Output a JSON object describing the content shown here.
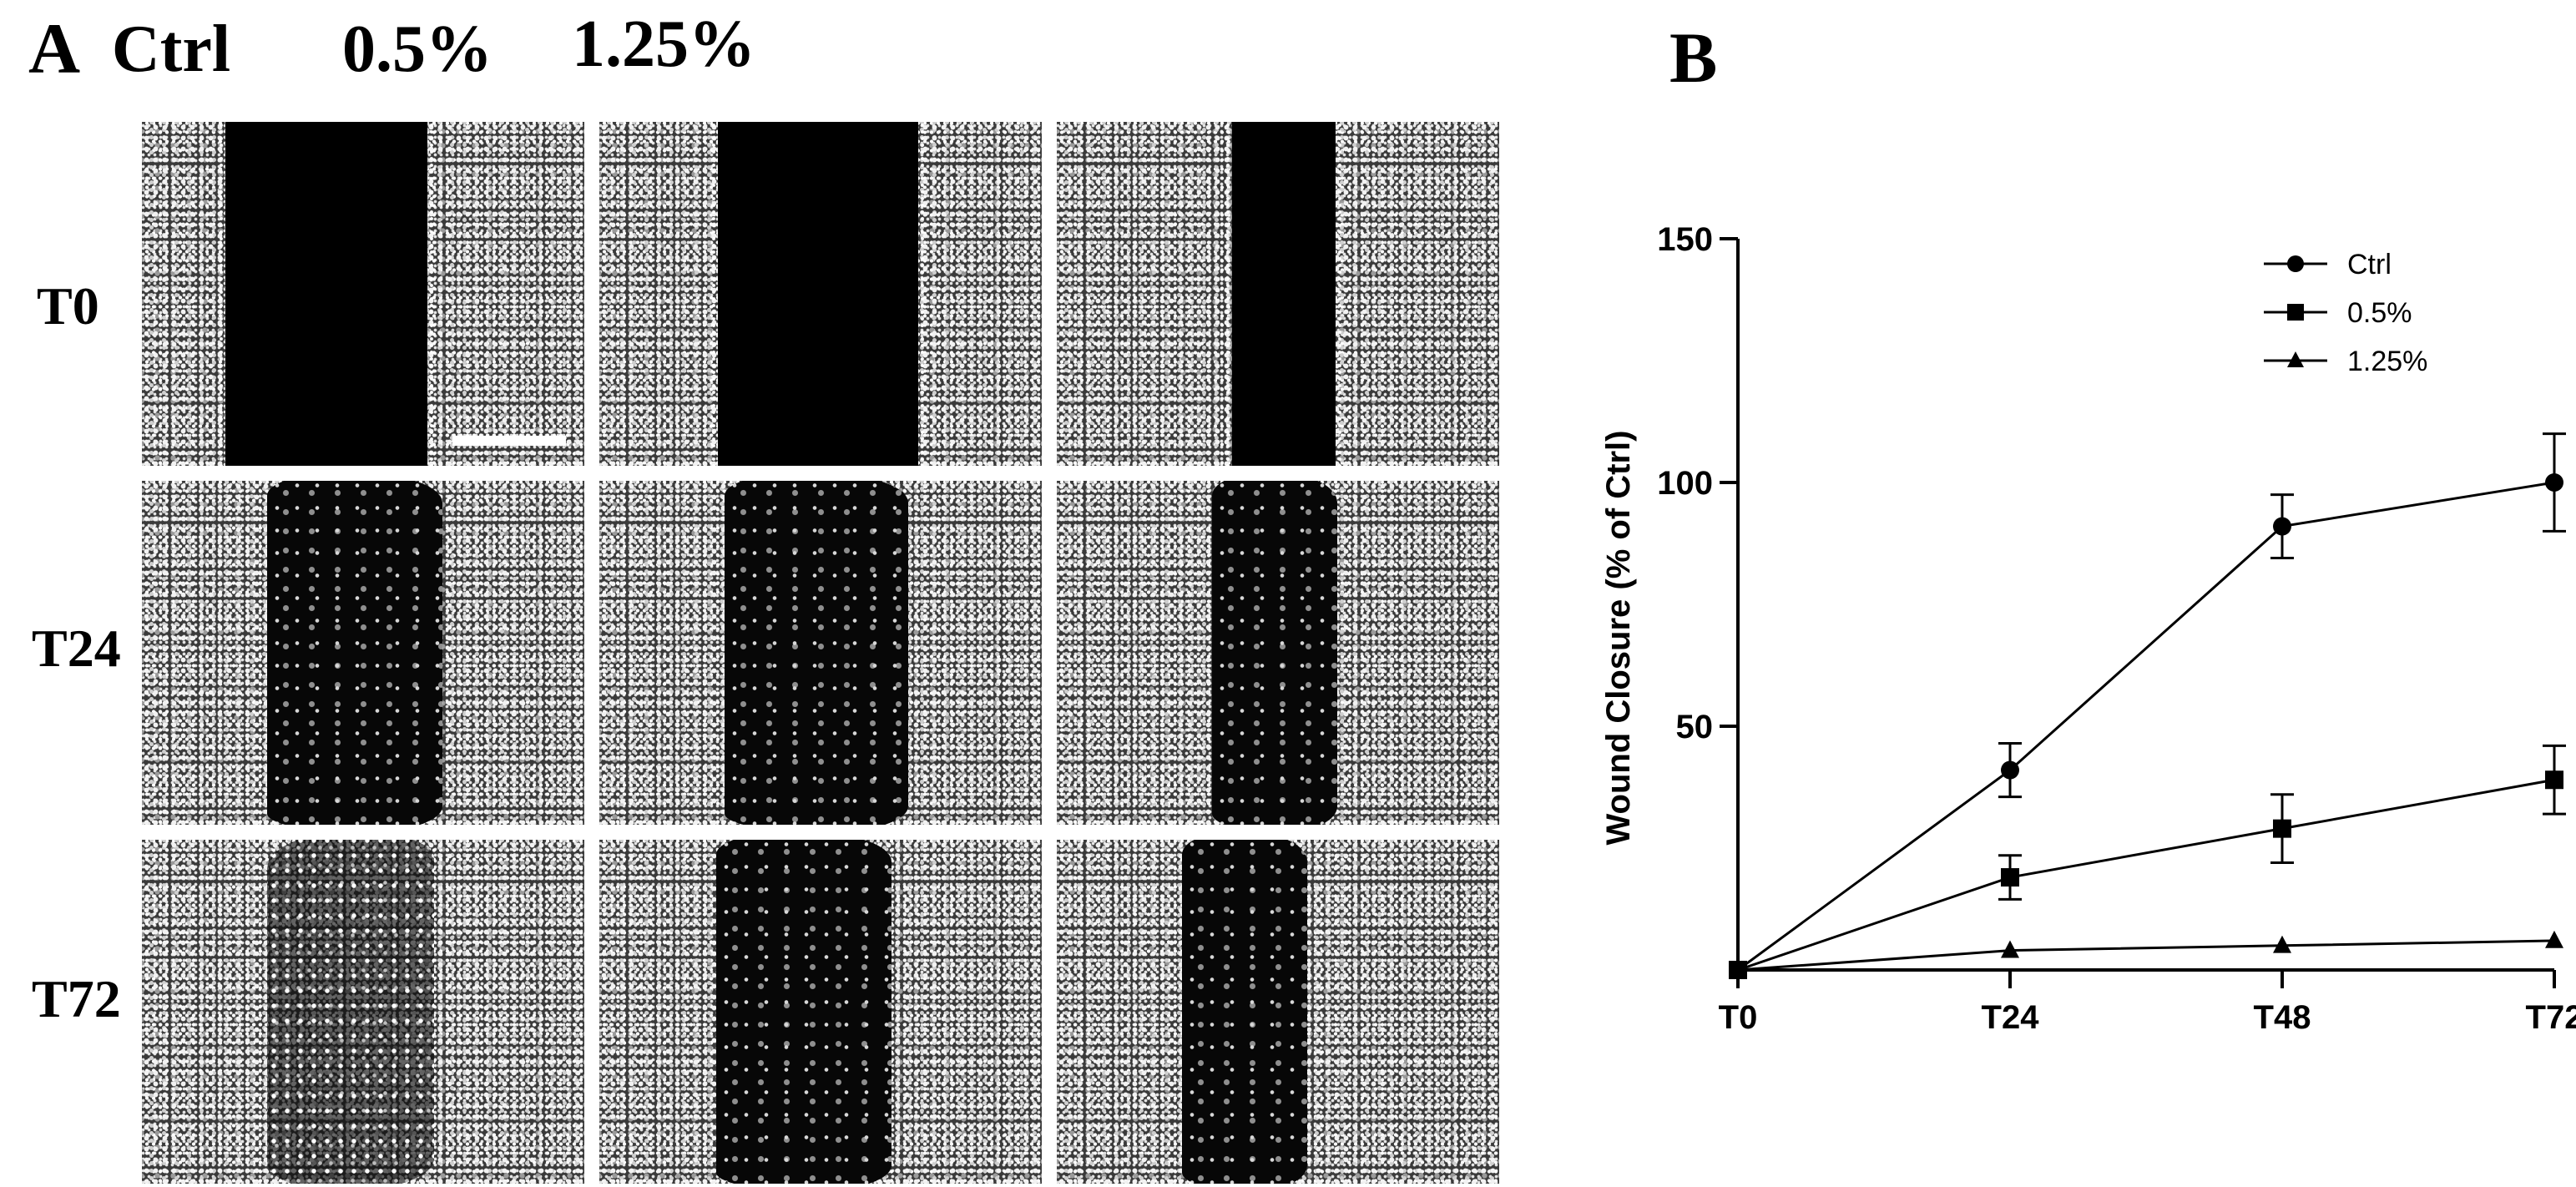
{
  "panel_a": {
    "letter": "A",
    "column_headers": [
      "Ctrl",
      "0.5%",
      "1.25%"
    ],
    "row_headers": [
      "T0",
      "T24",
      "T72"
    ]
  },
  "panel_b": {
    "letter": "B"
  },
  "chart_data": {
    "type": "line",
    "title": "",
    "xlabel": "",
    "ylabel": "Wound Closure (% of Ctrl)",
    "categories": [
      "T0",
      "T24",
      "T48",
      "T72"
    ],
    "ylim": [
      0,
      150
    ],
    "yticks": [
      50,
      100,
      150
    ],
    "grid": false,
    "legend_position": "top-right",
    "series": [
      {
        "name": "Ctrl",
        "marker": "circle",
        "values": [
          0,
          41,
          91,
          100
        ],
        "errors": [
          0,
          5.5,
          6.5,
          10
        ]
      },
      {
        "name": "0.5%",
        "marker": "square",
        "values": [
          0,
          19,
          29,
          39
        ],
        "errors": [
          0,
          4.5,
          7,
          7
        ]
      },
      {
        "name": "1.25%",
        "marker": "triangle",
        "values": [
          0,
          4,
          5,
          6
        ],
        "errors": [
          0,
          0,
          0,
          0
        ]
      }
    ],
    "colors": {
      "line": "#000000",
      "marker": "#000000"
    }
  }
}
